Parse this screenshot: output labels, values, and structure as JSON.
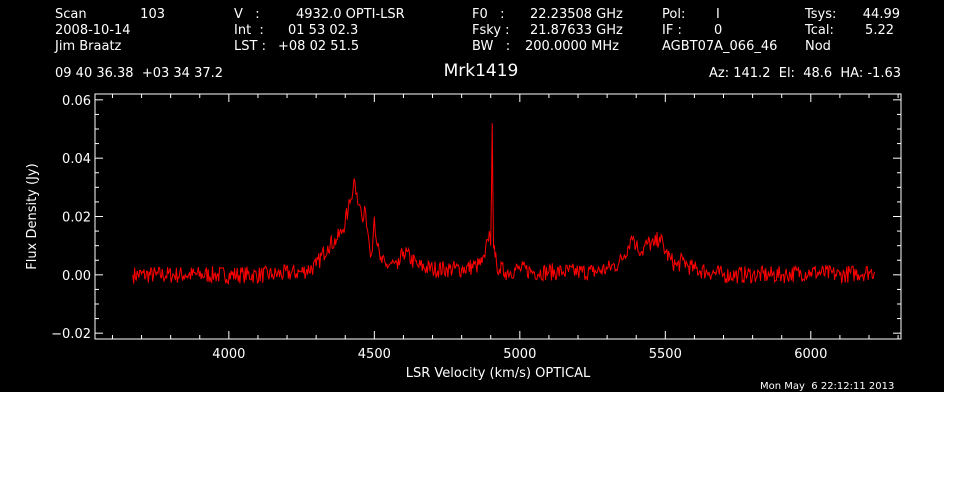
{
  "header": {
    "scan_label": "Scan",
    "scan_value": "103",
    "date": "2008-10-14",
    "observer": "Jim Braatz",
    "position": "09 40 36.38  +03 34 37.2",
    "v_label": "V   :",
    "v_value": "4932.0 OPTI-LSR",
    "int_label": "Int  :",
    "int_value": "01 53 02.3",
    "lst_label": "LST :",
    "lst_value": "+08 02 51.5",
    "f0_label": "F0   :",
    "f0_value": "22.23508 GHz",
    "fsky_label": "Fsky :",
    "fsky_value": "21.87633 GHz",
    "bw_label": "BW   :",
    "bw_value": "200.0000 MHz",
    "pol_label": "Pol:",
    "pol_value": "I",
    "if_label": "IF :",
    "if_value": "0",
    "project": "AGBT07A_066_46",
    "tsys_label": "Tsys:",
    "tsys_value": "44.99",
    "tcal_label": "Tcal:",
    "tcal_value": "5.22",
    "mode": "Nod",
    "source": "Mrk1419",
    "az_el_ha": "Az: 141.2  El:  48.6  HA: -1.63"
  },
  "timestamp": "Mon May  6 22:12:11 2013",
  "colors": {
    "background": "#000000",
    "axes": "#ffffff",
    "trace": "#ff0000"
  },
  "chart_data": {
    "type": "line",
    "xlabel": "LSR Velocity (km/s) OPTICAL",
    "ylabel": "Flux Density (Jy)",
    "xlim": [
      3540,
      6310
    ],
    "ylim": [
      -0.022,
      0.062
    ],
    "x_ticks": [
      4000,
      4500,
      5000,
      5500,
      6000
    ],
    "y_ticks": [
      -0.02,
      0.0,
      0.02,
      0.04,
      0.06
    ],
    "x_tick_labels": [
      "4000",
      "4500",
      "5000",
      "5500",
      "6000"
    ],
    "y_tick_labels": [
      "−0.02",
      "0.00",
      "0.02",
      "0.04",
      "0.06"
    ],
    "grid": false,
    "series": [
      {
        "x": [
          3670,
          3750,
          3850,
          3950,
          4050,
          4150,
          4250,
          4300,
          4340,
          4370,
          4390,
          4410,
          4420,
          4430,
          4440,
          4450,
          4460,
          4470,
          4480,
          4490,
          4500,
          4510,
          4520,
          4540,
          4560,
          4580,
          4600,
          4650,
          4700,
          4750,
          4800,
          4850,
          4870,
          4880,
          4890,
          4895,
          4900,
          4905,
          4910,
          4915,
          4920,
          4930,
          4950,
          5000,
          5050,
          5100,
          5150,
          5200,
          5250,
          5300,
          5340,
          5360,
          5380,
          5390,
          5400,
          5420,
          5440,
          5460,
          5480,
          5500,
          5520,
          5540,
          5560,
          5580,
          5600,
          5650,
          5700,
          5750,
          5800,
          5900,
          6000,
          6100,
          6200,
          6220
        ],
        "y": [
          0.0,
          0.0,
          0.0,
          0.0,
          0.0,
          0.0,
          0.001,
          0.003,
          0.01,
          0.012,
          0.015,
          0.022,
          0.026,
          0.033,
          0.028,
          0.024,
          0.018,
          0.022,
          0.013,
          0.007,
          0.02,
          0.01,
          0.005,
          0.003,
          0.004,
          0.002,
          0.008,
          0.003,
          0.002,
          0.002,
          0.002,
          0.003,
          0.004,
          0.006,
          0.012,
          0.015,
          0.01,
          0.052,
          0.009,
          0.006,
          0.004,
          0.002,
          0.001,
          0.002,
          0.001,
          0.001,
          0.001,
          0.001,
          0.001,
          0.002,
          0.004,
          0.007,
          0.012,
          0.013,
          0.01,
          0.008,
          0.011,
          0.01,
          0.013,
          0.008,
          0.005,
          0.003,
          0.005,
          0.003,
          0.002,
          0.001,
          0.0,
          0.0,
          0.0,
          0.0,
          0.001,
          0.0,
          0.001,
          0.001
        ]
      }
    ]
  }
}
